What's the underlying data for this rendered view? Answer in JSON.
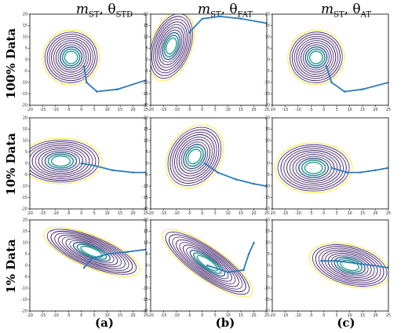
{
  "column_titles": [
    {
      "main": "m",
      "sub": "ST",
      "sep": ", θ",
      "sub2": "STD"
    },
    {
      "main": "m",
      "sub": "ST",
      "sep": ", θ",
      "sub2": "FAT"
    },
    {
      "main": "m",
      "sub": "ST",
      "sep": ", θ",
      "sub2": "AT"
    }
  ],
  "row_labels": [
    "100% Data",
    "10% Data",
    "1% Data"
  ],
  "panel_labels": [
    "(a)",
    "(b)",
    "(c)"
  ],
  "chart_data": {
    "type": "contour",
    "xlim": [
      -20,
      25
    ],
    "ylim": [
      -20,
      20
    ],
    "x_ticks": [
      -20,
      -15,
      -10,
      -5,
      0,
      5,
      10,
      15,
      20,
      25
    ],
    "y_ticks": [
      -20,
      -15,
      -10,
      -5,
      0,
      5,
      10,
      15,
      20
    ],
    "contour_colors": [
      "#3b0f4f",
      "#46327e",
      "#365c8d",
      "#277f8e",
      "#1fa187",
      "#4ac16d",
      "#a0da39",
      "#fde725"
    ],
    "trajectory_color": "#2b7bba",
    "panels": [
      {
        "row": 0,
        "col": 0,
        "center": [
          -4,
          1
        ],
        "radius": [
          11,
          12
        ],
        "angle": -15,
        "tail": [
          [
            1,
            -3
          ],
          [
            2,
            -10
          ],
          [
            6,
            -14
          ],
          [
            14,
            -13
          ],
          [
            25,
            -9
          ]
        ]
      },
      {
        "row": 0,
        "col": 1,
        "center": [
          -12,
          6
        ],
        "radius": [
          8,
          16
        ],
        "angle": 20,
        "tail": [
          [
            -5,
            12
          ],
          [
            0,
            18
          ],
          [
            7,
            19
          ],
          [
            15,
            18
          ],
          [
            25,
            16
          ]
        ]
      },
      {
        "row": 0,
        "col": 2,
        "center": [
          -3,
          1
        ],
        "radius": [
          11,
          12
        ],
        "angle": -20,
        "tail": [
          [
            1,
            -3
          ],
          [
            3,
            -10
          ],
          [
            8,
            -14
          ],
          [
            15,
            -13
          ],
          [
            25,
            -10
          ]
        ]
      },
      {
        "row": 1,
        "col": 0,
        "center": [
          -8,
          1
        ],
        "radius": [
          16,
          10
        ],
        "angle": 0,
        "tail": [
          [
            0,
            0
          ],
          [
            5,
            -1
          ],
          [
            12,
            -3
          ],
          [
            20,
            -4
          ],
          [
            25,
            -4
          ]
        ]
      },
      {
        "row": 1,
        "col": 1,
        "center": [
          -3,
          3
        ],
        "radius": [
          10,
          15
        ],
        "angle": 35,
        "tail": [
          [
            1,
            0
          ],
          [
            6,
            -4
          ],
          [
            13,
            -7
          ],
          [
            20,
            -9
          ],
          [
            25,
            -10
          ]
        ]
      },
      {
        "row": 1,
        "col": 2,
        "center": [
          -4,
          -2
        ],
        "radius": [
          15,
          11
        ],
        "angle": 0,
        "tail": [
          [
            3,
            -2
          ],
          [
            9,
            -4
          ],
          [
            14,
            -4
          ],
          [
            20,
            -3
          ],
          [
            25,
            -2
          ]
        ]
      },
      {
        "row": 2,
        "col": 0,
        "center": [
          4,
          6
        ],
        "radius": [
          20,
          7
        ],
        "angle": 22,
        "tail": [
          [
            1,
            -1
          ],
          [
            4,
            3
          ],
          [
            10,
            5
          ],
          [
            18,
            6
          ],
          [
            25,
            7
          ]
        ]
      },
      {
        "row": 2,
        "col": 1,
        "center": [
          2,
          1
        ],
        "radius": [
          21,
          7
        ],
        "angle": 35,
        "tail": [
          [
            2,
            0
          ],
          [
            10,
            -3
          ],
          [
            16,
            -2
          ],
          [
            18,
            5
          ],
          [
            20,
            10
          ]
        ]
      },
      {
        "row": 2,
        "col": 2,
        "center": [
          10,
          0
        ],
        "radius": [
          16,
          9
        ],
        "angle": 15,
        "tail": [
          [
            -1,
            2
          ],
          [
            5,
            2
          ],
          [
            12,
            1
          ],
          [
            19,
            0
          ],
          [
            25,
            -1
          ]
        ]
      }
    ]
  }
}
